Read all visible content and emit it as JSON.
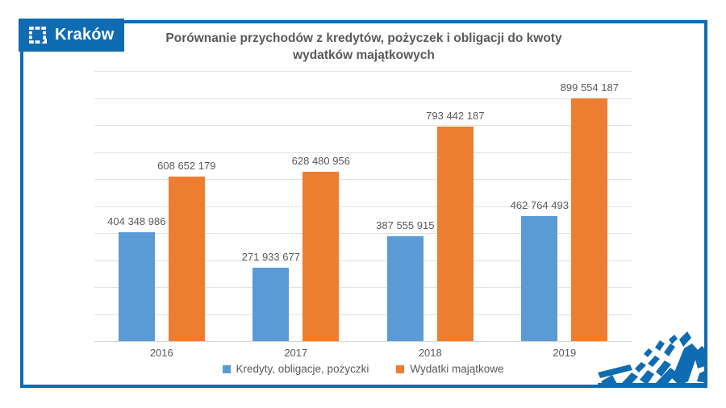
{
  "brand": {
    "name": "Kraków",
    "logo_icon": "krakow-dashed-square-icon"
  },
  "header": {
    "title_line1": "Porównanie przychodów z kredytów, pożyczek i obligacji do kwoty",
    "title_line2": "wydatków majątkowych"
  },
  "chart_data": {
    "type": "bar",
    "title": "Porównanie przychodów z kredytów, pożyczek i obligacji do kwoty wydatków majątkowych",
    "categories": [
      "2016",
      "2017",
      "2018",
      "2019"
    ],
    "series": [
      {
        "name": "Kredyty, obligacje, pożyczki",
        "color": "#5B9BD5",
        "values": [
          404348986,
          271933677,
          387555915,
          462764493
        ],
        "labels": [
          "404 348 986",
          "271 933 677",
          "387 555 915",
          "462 764 493"
        ]
      },
      {
        "name": "Wydatki majątkowe",
        "color": "#ED7D31",
        "values": [
          608652179,
          628480956,
          793442187,
          899554187
        ],
        "labels": [
          "608 652 179",
          "628 480 956",
          "793 442 187",
          "899 554 187"
        ]
      }
    ],
    "xlabel": "",
    "ylabel": "",
    "ylim": [
      0,
      1000000000
    ],
    "grid_step": 100000000,
    "grid": true,
    "y_axis_labels_visible": false,
    "legend_position": "bottom"
  },
  "colors": {
    "frame_blue": "#0F6BB2",
    "bar_blue": "#5B9BD5",
    "bar_orange": "#ED7D31",
    "text_gray": "#595959",
    "gridline": "#E2E2E2",
    "background": "#FFFFFF"
  }
}
